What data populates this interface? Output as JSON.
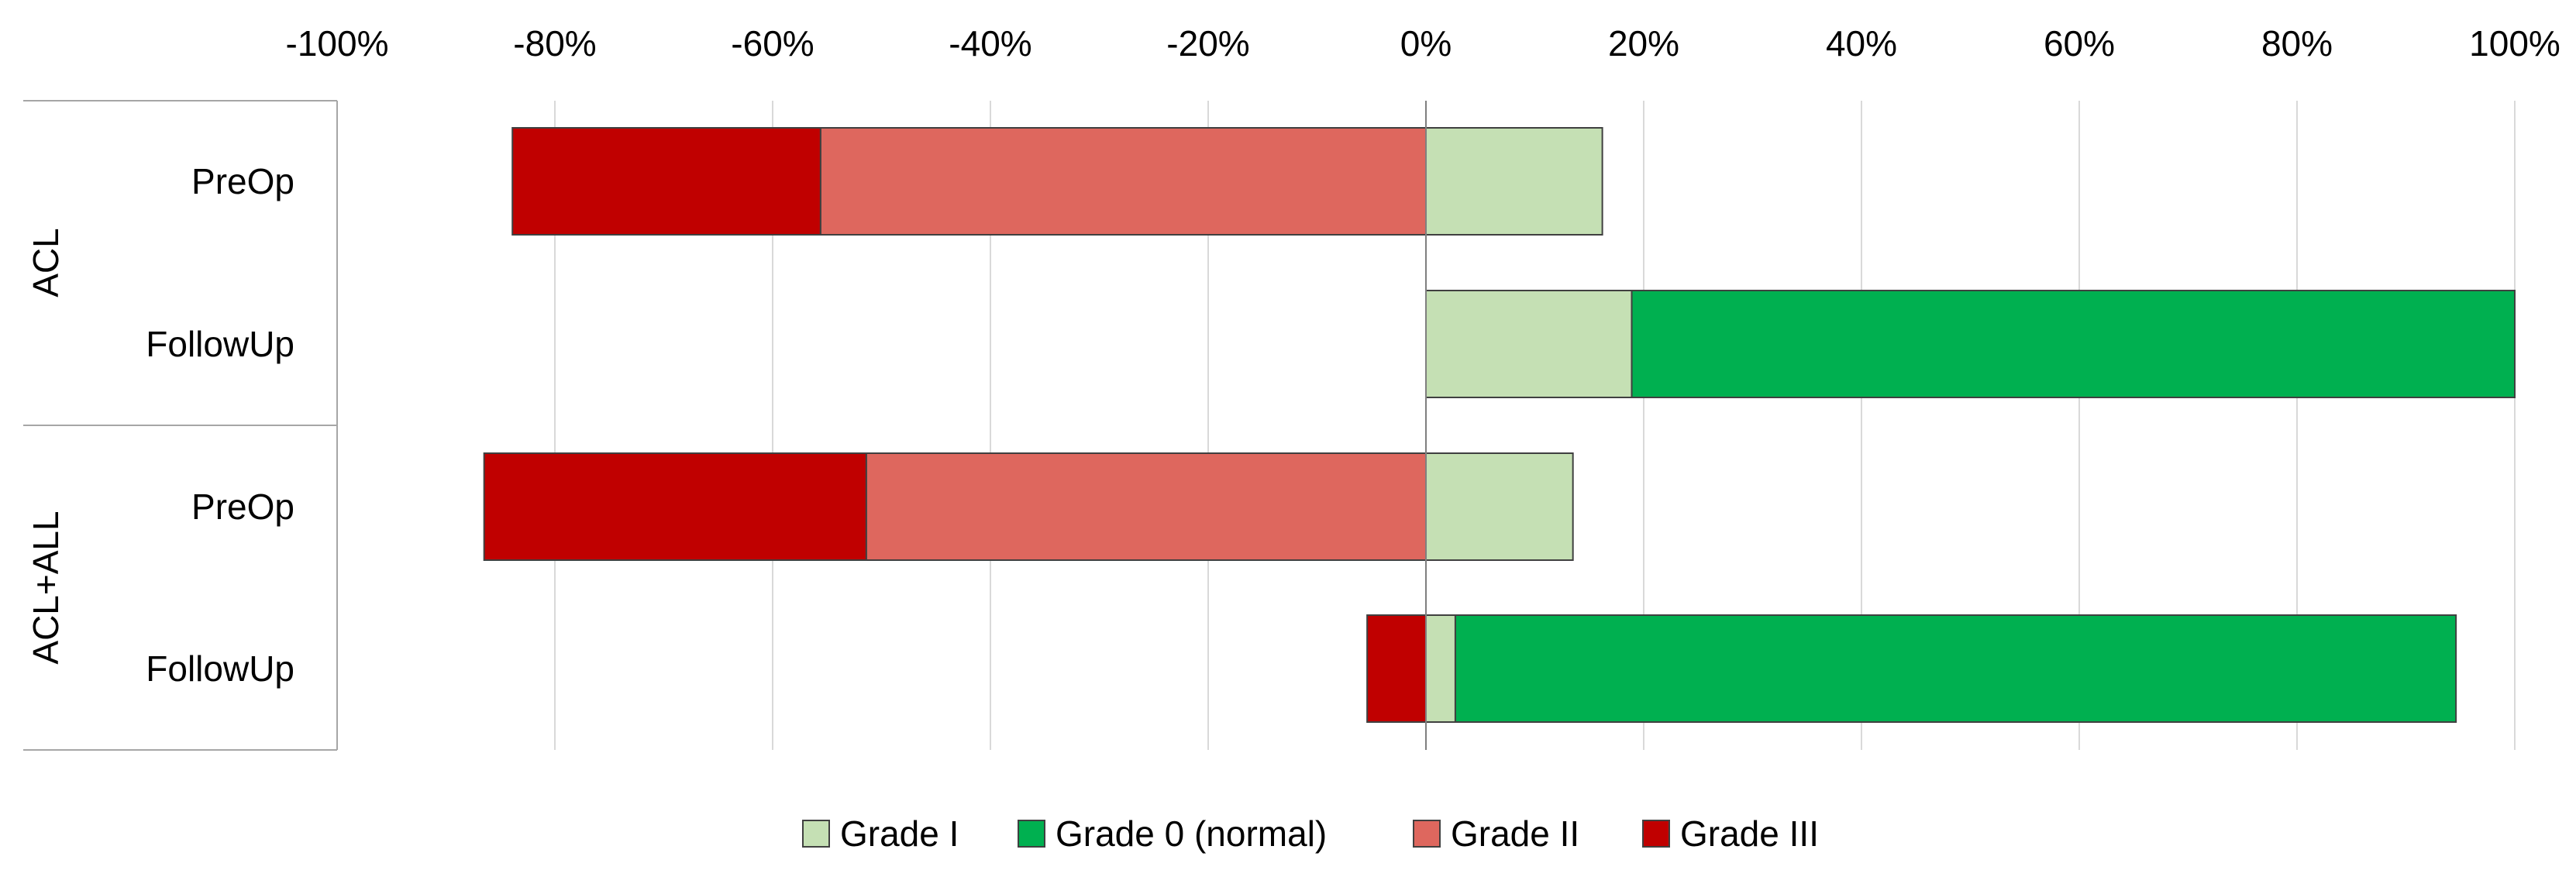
{
  "chart_data": {
    "type": "bar",
    "orientation": "horizontal",
    "stacked": true,
    "diverging": true,
    "title": "",
    "xlabel": "",
    "ylabel": "",
    "xlim": [
      -100,
      100
    ],
    "x_ticks": [
      -100,
      -80,
      -60,
      -40,
      -20,
      0,
      20,
      40,
      60,
      80,
      100
    ],
    "x_tick_labels": [
      "-100%",
      "-80%",
      "-60%",
      "-40%",
      "-20%",
      "0%",
      "20%",
      "40%",
      "60%",
      "80%",
      "100%"
    ],
    "x_axis_position": "top",
    "grid": true,
    "legend_position": "bottom",
    "groups": [
      {
        "label": "ACL",
        "categories": [
          "PreOp",
          "FollowUp"
        ]
      },
      {
        "label": "ACL+ALL",
        "categories": [
          "PreOp",
          "FollowUp"
        ]
      }
    ],
    "series": [
      {
        "name": "Grade I",
        "color": "#c5e0b4",
        "side": "positive",
        "values": [
          16.2,
          18.9,
          13.5,
          2.7
        ]
      },
      {
        "name": "Grade 0 (normal)",
        "color": "#00b050",
        "side": "positive",
        "values": [
          0,
          81.1,
          0,
          91.9
        ]
      },
      {
        "name": "Grade II",
        "color": "#de675e",
        "side": "negative",
        "values": [
          -55.6,
          0,
          -51.4,
          0
        ]
      },
      {
        "name": "Grade III",
        "color": "#c00000",
        "side": "negative",
        "values": [
          -28.3,
          0,
          -35.1,
          -5.4
        ]
      }
    ]
  }
}
